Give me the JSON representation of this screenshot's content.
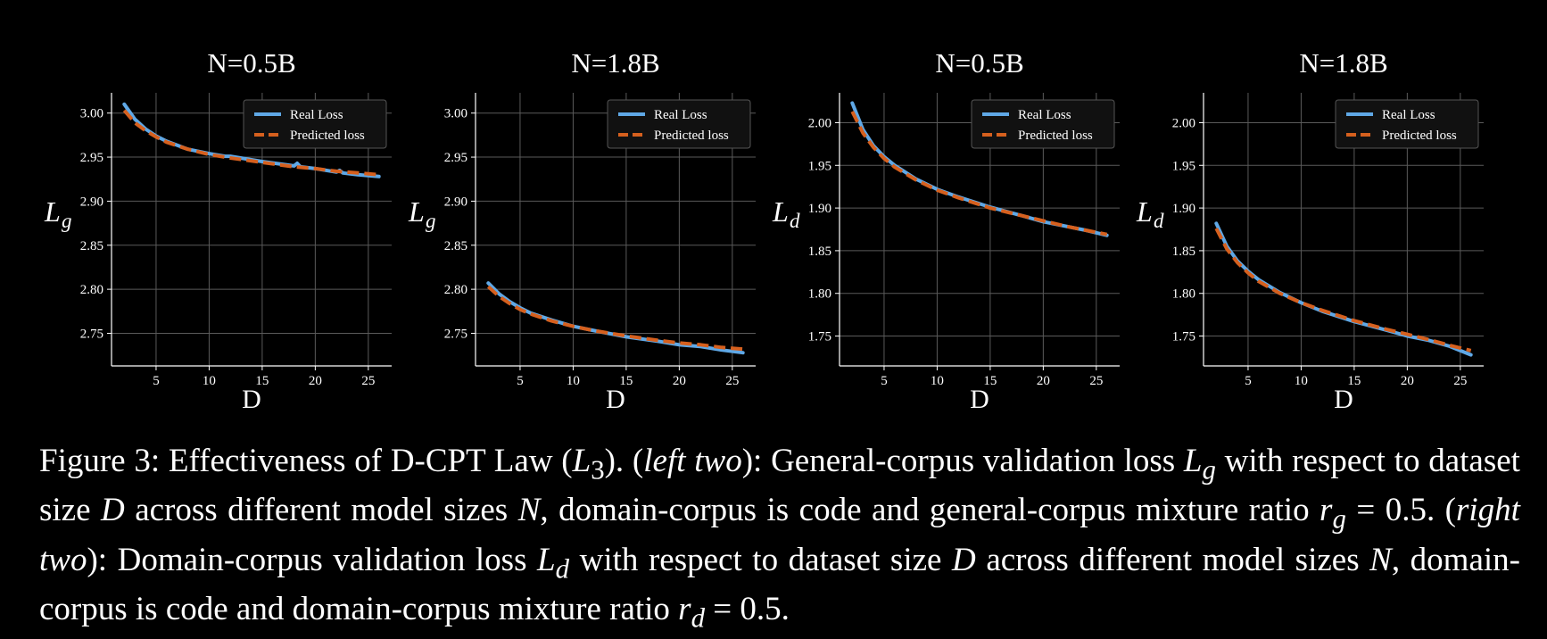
{
  "chart_data": [
    {
      "type": "line",
      "title": "N=0.5B",
      "xlabel": "D",
      "ylabel_symbol": "L",
      "ylabel_sub": "g",
      "xlim": [
        0.8,
        27.2
      ],
      "ylim": [
        2.713,
        3.023
      ],
      "xticks": [
        5,
        10,
        15,
        20,
        25
      ],
      "yticks": [
        2.75,
        2.8,
        2.85,
        2.9,
        2.95,
        3.0
      ],
      "ytick_labels": [
        "2.75",
        "2.80",
        "2.85",
        "2.90",
        "2.95",
        "3.00"
      ],
      "legend": "top-right",
      "grid": true,
      "series": [
        {
          "name": "Real Loss",
          "color": "#5fa8e6",
          "style": "solid",
          "x": [
            2,
            3,
            4,
            5,
            6,
            8,
            10,
            11.5,
            12,
            15,
            18,
            18.3,
            18.6,
            20,
            22,
            22.3,
            22.6,
            24,
            26
          ],
          "y": [
            3.01,
            2.993,
            2.982,
            2.974,
            2.968,
            2.959,
            2.954,
            2.951,
            2.951,
            2.945,
            2.94,
            2.943,
            2.939,
            2.937,
            2.933,
            2.935,
            2.932,
            2.93,
            2.928
          ]
        },
        {
          "name": "Predicted loss",
          "color": "#d6601e",
          "style": "dashed",
          "x": [
            2,
            3,
            4,
            5,
            6,
            8,
            10,
            12,
            15,
            18,
            20,
            22,
            24,
            26
          ],
          "y": [
            3.003,
            2.989,
            2.98,
            2.973,
            2.967,
            2.959,
            2.953,
            2.949,
            2.944,
            2.939,
            2.937,
            2.934,
            2.932,
            2.93
          ]
        }
      ]
    },
    {
      "type": "line",
      "title": "N=1.8B",
      "xlabel": "D",
      "ylabel_symbol": "L",
      "ylabel_sub": "g",
      "xlim": [
        0.8,
        27.2
      ],
      "ylim": [
        2.713,
        3.023
      ],
      "xticks": [
        5,
        10,
        15,
        20,
        25
      ],
      "yticks": [
        2.75,
        2.8,
        2.85,
        2.9,
        2.95,
        3.0
      ],
      "ytick_labels": [
        "2.75",
        "2.80",
        "2.85",
        "2.90",
        "2.95",
        "3.00"
      ],
      "legend": "top-right",
      "grid": true,
      "series": [
        {
          "name": "Real Loss",
          "color": "#5fa8e6",
          "style": "solid",
          "x": [
            2,
            3,
            4,
            5,
            6,
            8,
            10,
            12,
            15,
            18,
            20,
            22,
            24,
            26
          ],
          "y": [
            2.807,
            2.795,
            2.786,
            2.779,
            2.773,
            2.765,
            2.758,
            2.753,
            2.746,
            2.741,
            2.737,
            2.735,
            2.731,
            2.728
          ]
        },
        {
          "name": "Predicted loss",
          "color": "#d6601e",
          "style": "dashed",
          "x": [
            2,
            3,
            4,
            5,
            6,
            8,
            10,
            12,
            15,
            18,
            20,
            22,
            24,
            26
          ],
          "y": [
            2.803,
            2.792,
            2.784,
            2.777,
            2.772,
            2.764,
            2.758,
            2.753,
            2.747,
            2.742,
            2.739,
            2.737,
            2.734,
            2.732
          ]
        }
      ]
    },
    {
      "type": "line",
      "title": "N=0.5B",
      "xlabel": "D",
      "ylabel_symbol": "L",
      "ylabel_sub": "d",
      "xlim": [
        0.8,
        27.2
      ],
      "ylim": [
        1.715,
        2.035
      ],
      "xticks": [
        5,
        10,
        15,
        20,
        25
      ],
      "yticks": [
        1.75,
        1.8,
        1.85,
        1.9,
        1.95,
        2.0
      ],
      "ytick_labels": [
        "1.75",
        "1.80",
        "1.85",
        "1.90",
        "1.95",
        "2.00"
      ],
      "legend": "top-right",
      "grid": true,
      "series": [
        {
          "name": "Real Loss",
          "color": "#5fa8e6",
          "style": "solid",
          "x": [
            2,
            3,
            4,
            5,
            6,
            8,
            10,
            12,
            15,
            18,
            20,
            22,
            24,
            26
          ],
          "y": [
            2.023,
            1.992,
            1.973,
            1.96,
            1.95,
            1.934,
            1.922,
            1.913,
            1.901,
            1.891,
            1.884,
            1.879,
            1.874,
            1.868
          ]
        },
        {
          "name": "Predicted loss",
          "color": "#d6601e",
          "style": "dashed",
          "x": [
            2,
            3,
            4,
            5,
            6,
            8,
            10,
            12,
            15,
            18,
            20,
            22,
            24,
            26
          ],
          "y": [
            2.013,
            1.988,
            1.971,
            1.958,
            1.948,
            1.933,
            1.921,
            1.912,
            1.9,
            1.891,
            1.885,
            1.879,
            1.874,
            1.869
          ]
        }
      ]
    },
    {
      "type": "line",
      "title": "N=1.8B",
      "xlabel": "D",
      "ylabel_symbol": "L",
      "ylabel_sub": "d",
      "xlim": [
        0.8,
        27.2
      ],
      "ylim": [
        1.715,
        2.035
      ],
      "xticks": [
        5,
        10,
        15,
        20,
        25
      ],
      "yticks": [
        1.75,
        1.8,
        1.85,
        1.9,
        1.95,
        2.0
      ],
      "ytick_labels": [
        "1.75",
        "1.80",
        "1.85",
        "1.90",
        "1.95",
        "2.00"
      ],
      "legend": "top-right",
      "grid": true,
      "series": [
        {
          "name": "Real Loss",
          "color": "#5fa8e6",
          "style": "solid",
          "x": [
            2,
            3,
            4,
            5,
            6,
            8,
            10,
            12,
            15,
            18,
            20,
            22,
            24,
            26
          ],
          "y": [
            1.882,
            1.855,
            1.838,
            1.826,
            1.816,
            1.801,
            1.789,
            1.779,
            1.767,
            1.757,
            1.75,
            1.745,
            1.738,
            1.728
          ]
        },
        {
          "name": "Predicted loss",
          "color": "#d6601e",
          "style": "dashed",
          "x": [
            2,
            3,
            4,
            5,
            6,
            8,
            10,
            12,
            15,
            18,
            20,
            22,
            24,
            26
          ],
          "y": [
            1.876,
            1.852,
            1.836,
            1.824,
            1.814,
            1.8,
            1.789,
            1.78,
            1.768,
            1.758,
            1.752,
            1.746,
            1.739,
            1.733
          ]
        }
      ]
    }
  ],
  "caption": {
    "p1": "Figure 3: Effectiveness of D-CPT Law (",
    "L3": "L",
    "L3_sub": "3",
    "p2": "). (",
    "left_two": "left two",
    "p3": "): General-corpus validation loss ",
    "Lg": "L",
    "Lg_sub": "g",
    "p4": " with respect to dataset size ",
    "D1": "D",
    "p5": " across different model sizes ",
    "N1": "N",
    "p6": ", domain-corpus is code and general-corpus mixture ratio ",
    "rg": "r",
    "rg_sub": "g",
    "rg_val": " = 0.5. (",
    "right_two": "right two",
    "p7": "): Domain-corpus validation loss ",
    "Ld": "L",
    "Ld_sub": "d",
    "p8": " with respect to dataset size ",
    "D2": "D",
    "p9": " across different model sizes ",
    "N2": "N",
    "p10": ", domain-corpus is code and domain-corpus mixture ratio ",
    "rd": "r",
    "rd_sub": "d",
    "rd_val": " = 0.5."
  }
}
